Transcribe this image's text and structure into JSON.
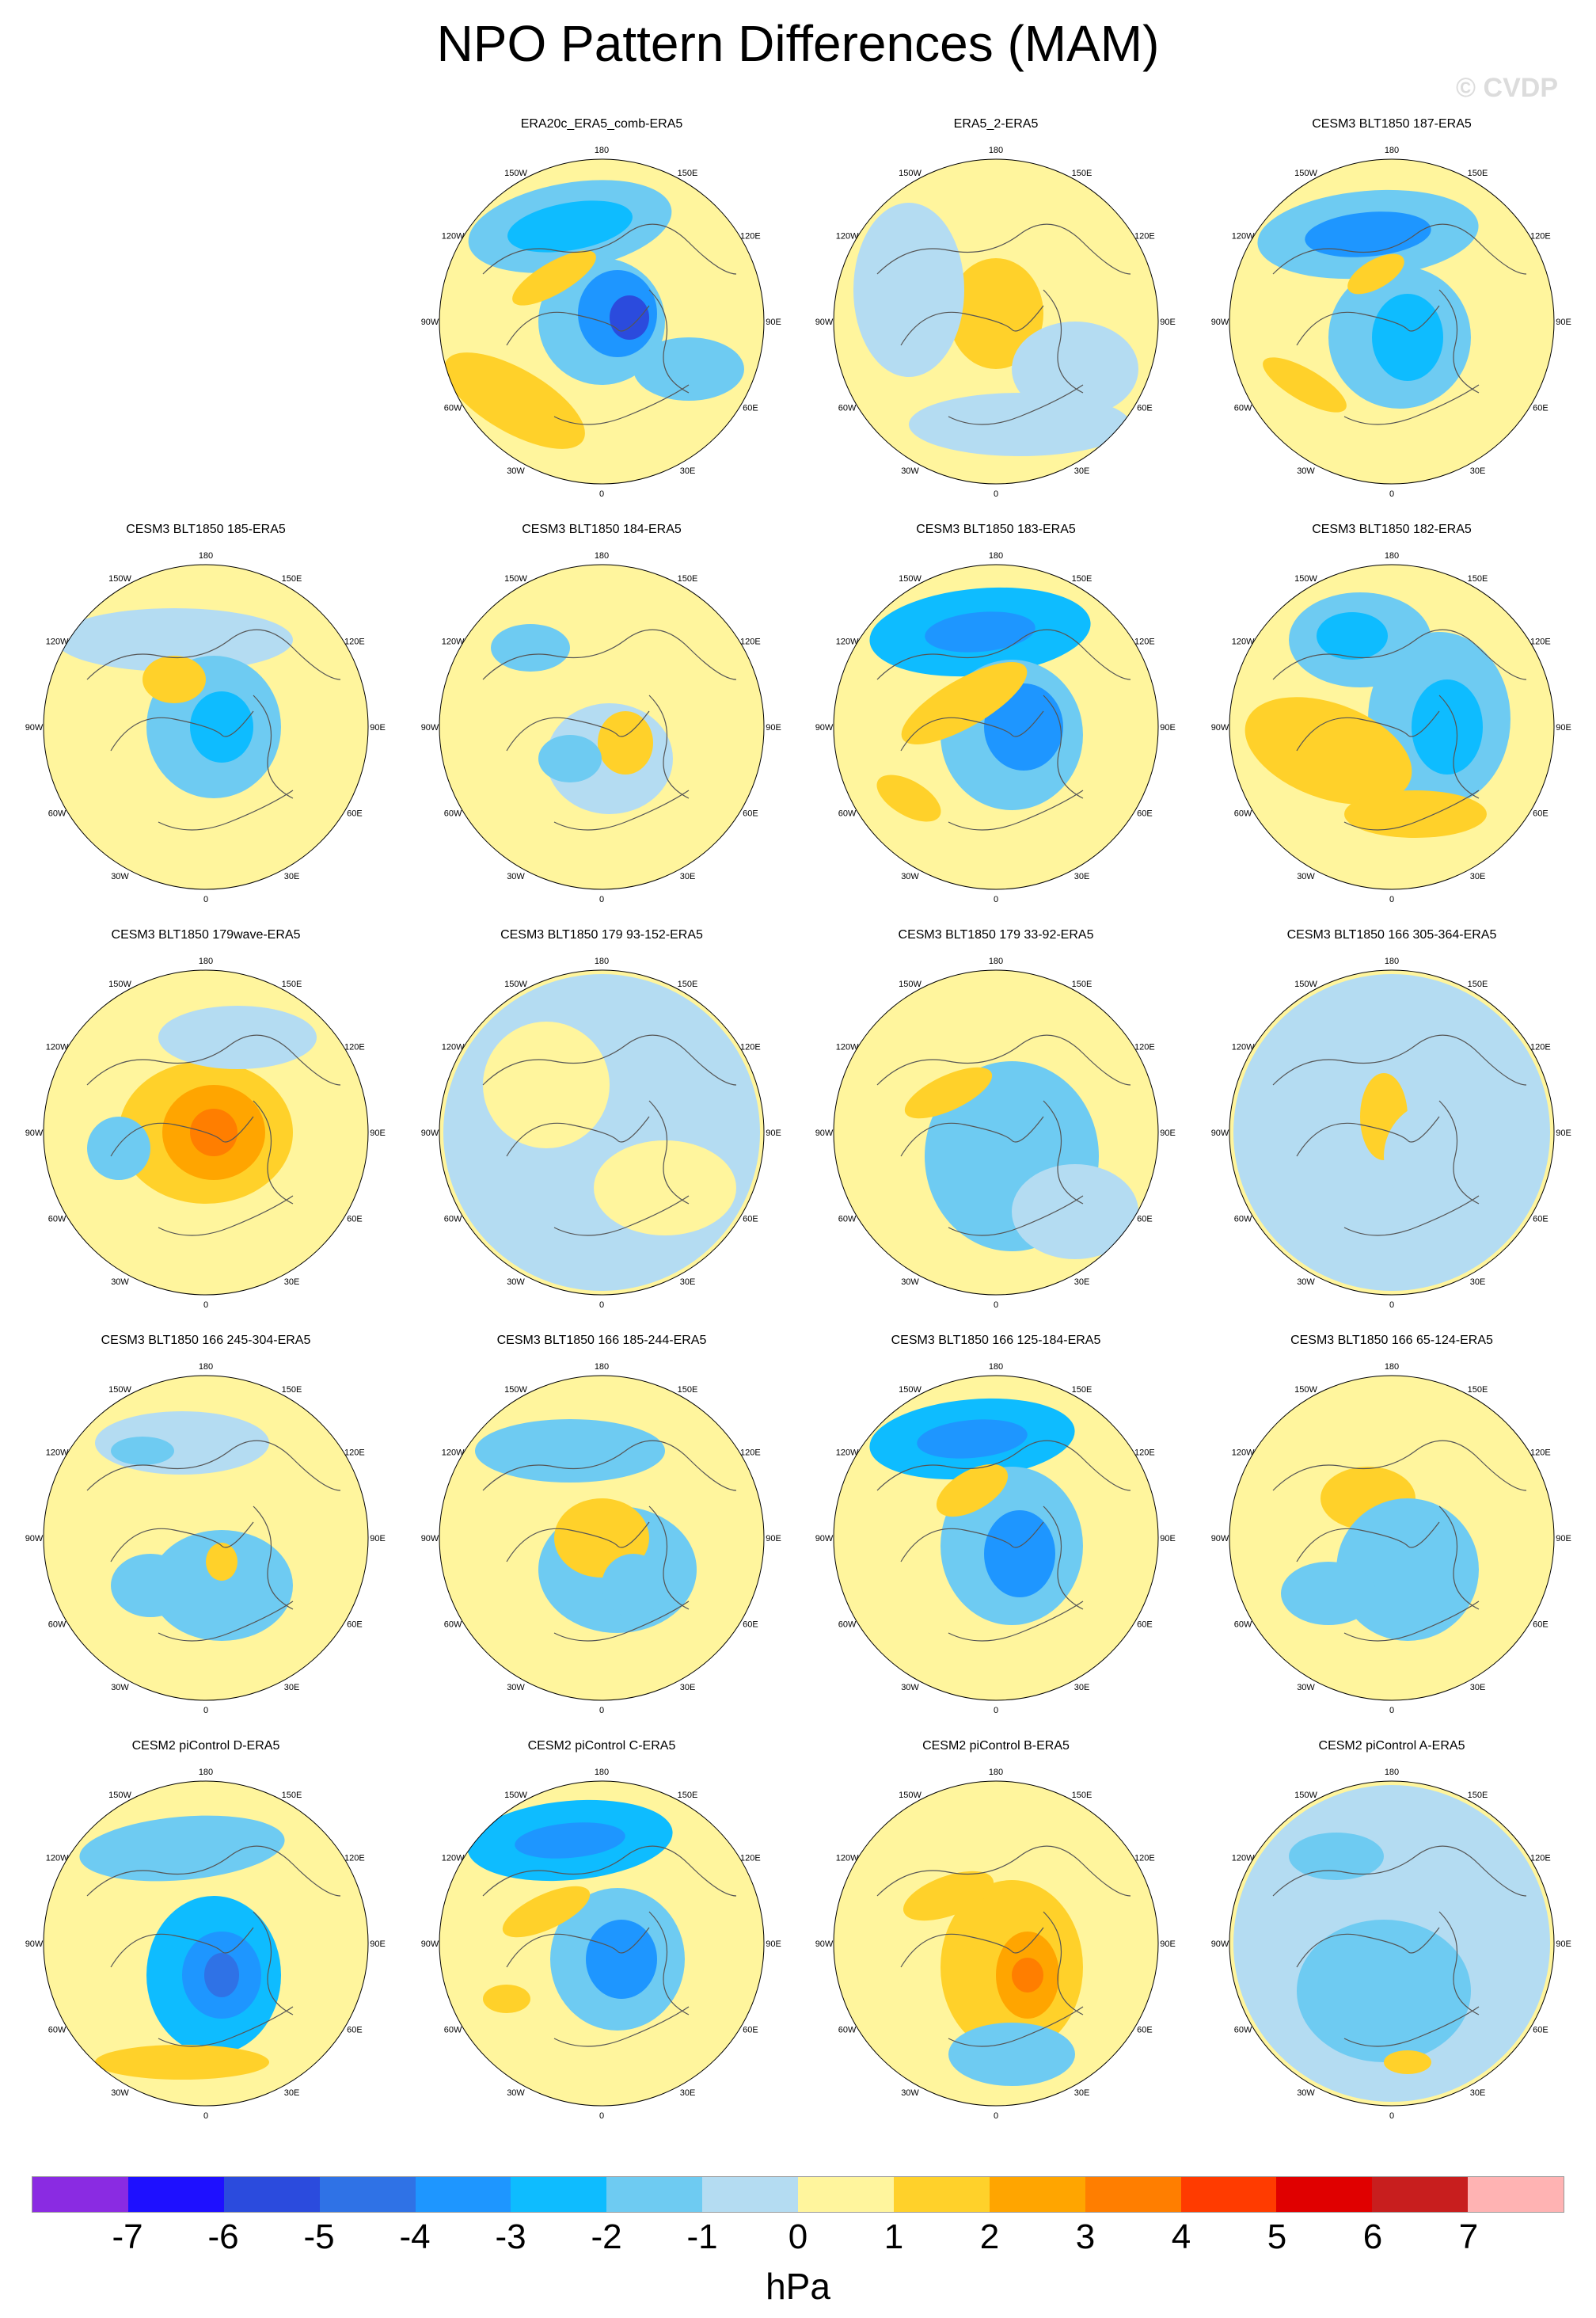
{
  "title": "NPO Pattern Differences (MAM)",
  "watermark": "© CVDP",
  "units": "hPa",
  "colorbar": {
    "colors": [
      "#8a2be2",
      "#1e10ff",
      "#2b4bdd",
      "#2f72e6",
      "#1e96ff",
      "#0ebcff",
      "#6ecbf2",
      "#b4dcf2",
      "#fff59d",
      "#ffd12a",
      "#ffa500",
      "#ff7e00",
      "#ff3b00",
      "#e00000",
      "#c81e1e",
      "#ffb3b3"
    ],
    "labels": [
      "-7",
      "-6",
      "-5",
      "-4",
      "-3",
      "-2",
      "-1",
      "0",
      "1",
      "2",
      "3",
      "4",
      "5",
      "6",
      "7"
    ]
  },
  "lon_labels": [
    "180",
    "150E",
    "120E",
    "90E",
    "60E",
    "30E",
    "0",
    "30W",
    "60W",
    "90W",
    "120W",
    "150W"
  ],
  "panels": [
    {
      "title": "ERA20c_ERA5_comb-ERA5",
      "row": 0,
      "col": 1
    },
    {
      "title": "ERA5_2-ERA5",
      "row": 0,
      "col": 2
    },
    {
      "title": "CESM3 BLT1850 187-ERA5",
      "row": 0,
      "col": 3
    },
    {
      "title": "CESM3 BLT1850 185-ERA5",
      "row": 1,
      "col": 0
    },
    {
      "title": "CESM3 BLT1850 184-ERA5",
      "row": 1,
      "col": 1
    },
    {
      "title": "CESM3 BLT1850 183-ERA5",
      "row": 1,
      "col": 2
    },
    {
      "title": "CESM3 BLT1850 182-ERA5",
      "row": 1,
      "col": 3
    },
    {
      "title": "CESM3 BLT1850 179wave-ERA5",
      "row": 2,
      "col": 0
    },
    {
      "title": "CESM3 BLT1850 179 93-152-ERA5",
      "row": 2,
      "col": 1
    },
    {
      "title": "CESM3 BLT1850 179 33-92-ERA5",
      "row": 2,
      "col": 2
    },
    {
      "title": "CESM3 BLT1850 166 305-364-ERA5",
      "row": 2,
      "col": 3
    },
    {
      "title": "CESM3 BLT1850 166 245-304-ERA5",
      "row": 3,
      "col": 0
    },
    {
      "title": "CESM3 BLT1850 166 185-244-ERA5",
      "row": 3,
      "col": 1
    },
    {
      "title": "CESM3 BLT1850 166 125-184-ERA5",
      "row": 3,
      "col": 2
    },
    {
      "title": "CESM3 BLT1850 166 65-124-ERA5",
      "row": 3,
      "col": 3
    },
    {
      "title": "CESM2 piControl D-ERA5",
      "row": 4,
      "col": 0
    },
    {
      "title": "CESM2 piControl C-ERA5",
      "row": 4,
      "col": 1
    },
    {
      "title": "CESM2 piControl B-ERA5",
      "row": 4,
      "col": 2
    },
    {
      "title": "CESM2 piControl A-ERA5",
      "row": 4,
      "col": 3
    }
  ]
}
